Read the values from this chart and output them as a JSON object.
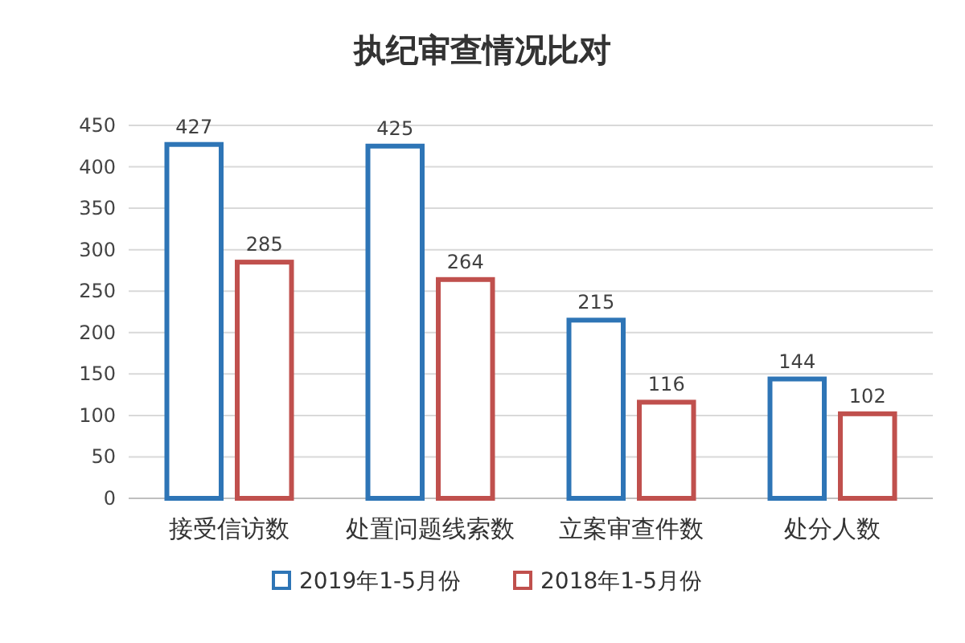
{
  "chart_data": {
    "type": "bar",
    "title": "执纪审查情况比对",
    "categories": [
      "接受信访数",
      "处置问题线索数",
      "立案审查件数",
      "处分人数"
    ],
    "series": [
      {
        "name": "2019年1-5月份",
        "color": "#2e75b6",
        "values": [
          427,
          425,
          215,
          144
        ]
      },
      {
        "name": "2018年1-5月份",
        "color": "#c0504d",
        "values": [
          285,
          264,
          116,
          102
        ]
      }
    ],
    "ylim": [
      0,
      450
    ],
    "yticks": [
      0,
      50,
      100,
      150,
      200,
      250,
      300,
      350,
      400,
      450
    ],
    "grid": "y",
    "legend": "bottom",
    "data_labels": true
  }
}
